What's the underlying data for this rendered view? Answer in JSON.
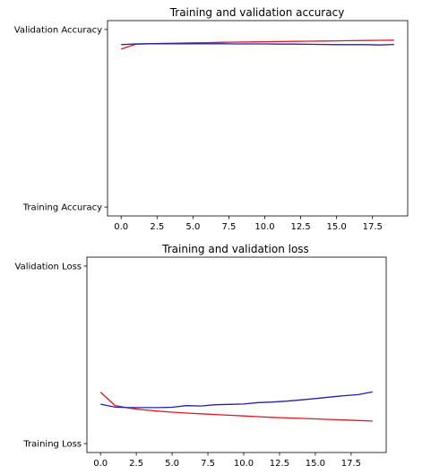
{
  "chart_data": [
    {
      "type": "line",
      "title": "Training and validation accuracy",
      "xlabel": "",
      "ylabel": "",
      "x_ticks": [
        "0.0",
        "2.5",
        "5.0",
        "7.5",
        "10.0",
        "12.5",
        "15.0",
        "17.5"
      ],
      "y_ticks": [
        "Training Accuracy",
        "Validation Accuracy"
      ],
      "xlim": [
        -0.95,
        19.95
      ],
      "ylim": [
        -0.05,
        1.05
      ],
      "grid": false,
      "x": [
        0,
        1,
        2,
        3,
        4,
        5,
        6,
        7,
        8,
        9,
        10,
        11,
        12,
        13,
        14,
        15,
        16,
        17,
        18,
        19
      ],
      "series": [
        {
          "color": "#e8141c",
          "values": [
            0.89,
            0.917,
            0.92,
            0.922,
            0.923,
            0.925,
            0.926,
            0.928,
            0.929,
            0.93,
            0.931,
            0.932,
            0.933,
            0.934,
            0.935,
            0.936,
            0.937,
            0.938,
            0.939,
            0.94
          ]
        },
        {
          "color": "#1f1fb4",
          "values": [
            0.915,
            0.919,
            0.92,
            0.92,
            0.92,
            0.92,
            0.92,
            0.92,
            0.919,
            0.919,
            0.919,
            0.918,
            0.918,
            0.917,
            0.916,
            0.915,
            0.915,
            0.915,
            0.913,
            0.916
          ]
        }
      ]
    },
    {
      "type": "line",
      "title": "Training and validation loss",
      "xlabel": "",
      "ylabel": "",
      "x_ticks": [
        "0.0",
        "2.5",
        "5.0",
        "7.5",
        "10.0",
        "12.5",
        "15.0",
        "17.5"
      ],
      "y_ticks": [
        "Training Loss",
        "Validation Loss"
      ],
      "xlim": [
        -0.95,
        19.95
      ],
      "ylim": [
        -0.05,
        1.05
      ],
      "grid": false,
      "x": [
        0,
        1,
        2,
        3,
        4,
        5,
        6,
        7,
        8,
        9,
        10,
        11,
        12,
        13,
        14,
        15,
        16,
        17,
        18,
        19
      ],
      "series": [
        {
          "color": "#e8141c",
          "values": [
            0.29,
            0.215,
            0.2,
            0.19,
            0.183,
            0.177,
            0.172,
            0.168,
            0.164,
            0.16,
            0.156,
            0.152,
            0.148,
            0.145,
            0.142,
            0.139,
            0.136,
            0.133,
            0.13,
            0.127
          ]
        },
        {
          "color": "#1f1fb4",
          "values": [
            0.222,
            0.206,
            0.203,
            0.203,
            0.203,
            0.205,
            0.214,
            0.212,
            0.219,
            0.221,
            0.223,
            0.231,
            0.234,
            0.239,
            0.246,
            0.254,
            0.262,
            0.27,
            0.276,
            0.291
          ]
        }
      ]
    }
  ]
}
